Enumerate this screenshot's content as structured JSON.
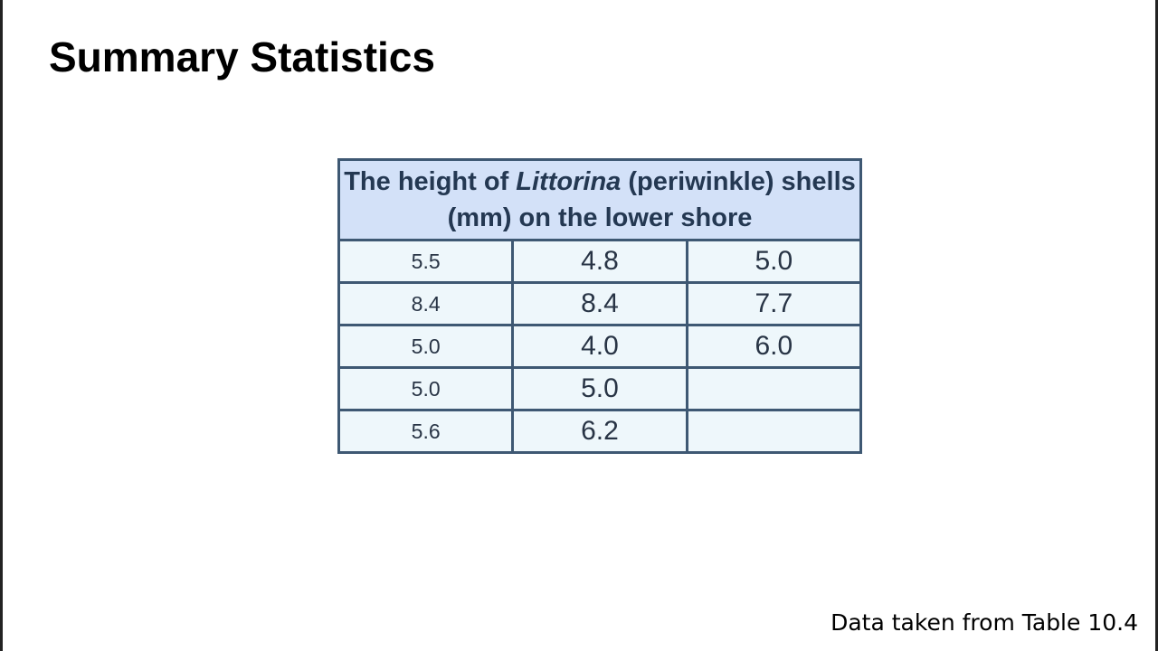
{
  "slide": {
    "title": "Summary Statistics",
    "source_note": "Data taken from Table 10.4"
  },
  "table": {
    "header": {
      "prefix": "The height of ",
      "genus": "Littorina",
      "suffix": " (periwinkle) shells (mm) on the lower shore"
    },
    "unit": "mm",
    "rows": [
      [
        "5.5",
        "4.8",
        "5.0"
      ],
      [
        "8.4",
        "8.4",
        "7.7"
      ],
      [
        "5.0",
        "4.0",
        "6.0"
      ],
      [
        "5.0",
        "5.0",
        ""
      ],
      [
        "5.6",
        "6.2",
        ""
      ]
    ]
  },
  "colors": {
    "header_background": "#d3e1f8",
    "cell_background": "#eef7fb",
    "border": "#3e5873",
    "header_text": "#243852",
    "cell_text": "#283445"
  }
}
